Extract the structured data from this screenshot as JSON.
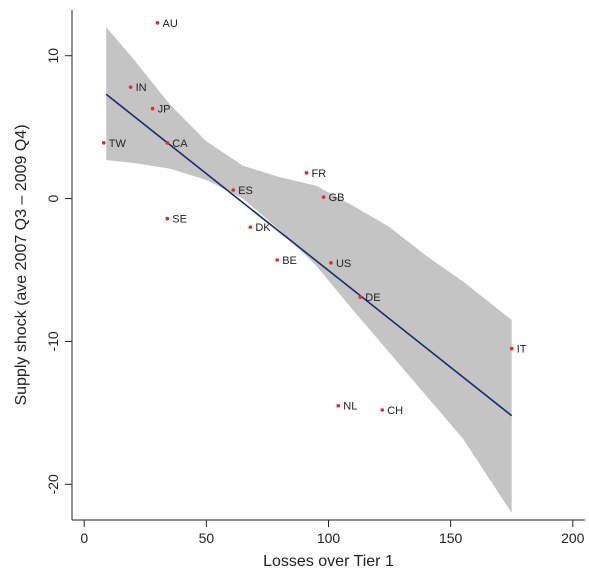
{
  "chart_data": {
    "type": "scatter",
    "title": "",
    "xlabel": "Losses over Tier 1",
    "ylabel": "Supply shock (ave 2007 Q3 – 2009 Q4)",
    "xlim": [
      -5,
      205
    ],
    "ylim": [
      -22.5,
      13.2
    ],
    "xticks": [
      0,
      50,
      100,
      150,
      200
    ],
    "yticks": [
      10,
      0,
      -10,
      -20
    ],
    "points": [
      {
        "label": "AU",
        "x": 30,
        "y": 12.3
      },
      {
        "label": "IN",
        "x": 19,
        "y": 7.8
      },
      {
        "label": "JP",
        "x": 28,
        "y": 6.3
      },
      {
        "label": "TW",
        "x": 8,
        "y": 3.9
      },
      {
        "label": "CA",
        "x": 34,
        "y": 3.9
      },
      {
        "label": "FR",
        "x": 91,
        "y": 1.8
      },
      {
        "label": "ES",
        "x": 61,
        "y": 0.6
      },
      {
        "label": "GB",
        "x": 98,
        "y": 0.1
      },
      {
        "label": "SE",
        "x": 34,
        "y": -1.4
      },
      {
        "label": "DK",
        "x": 68,
        "y": -2.0
      },
      {
        "label": "BE",
        "x": 79,
        "y": -4.3
      },
      {
        "label": "US",
        "x": 101,
        "y": -4.5
      },
      {
        "label": "DE",
        "x": 113,
        "y": -6.9
      },
      {
        "label": "IT",
        "x": 175,
        "y": -10.5
      },
      {
        "label": "NL",
        "x": 104,
        "y": -14.5
      },
      {
        "label": "CH",
        "x": 122,
        "y": -14.8
      }
    ],
    "fit_line": {
      "x": [
        9,
        175
      ],
      "y": [
        7.3,
        -15.2
      ]
    },
    "confidence_band": {
      "x": [
        9,
        20,
        35,
        50,
        65,
        80,
        95,
        110,
        125,
        140,
        155,
        175
      ],
      "upper": [
        12.0,
        9.8,
        6.6,
        4.0,
        2.3,
        1.5,
        0.9,
        -0.5,
        -2.0,
        -4.0,
        -5.8,
        -8.5
      ],
      "lower": [
        2.7,
        2.5,
        2.1,
        1.3,
        0.0,
        -2.2,
        -4.7,
        -7.8,
        -10.8,
        -13.8,
        -16.8,
        -22.0
      ]
    },
    "colors": {
      "band": "#c4c4c4",
      "fit_line": "#1b2a6b",
      "marker": "#e8262c",
      "axis": "#222222"
    },
    "grid": false,
    "legend": "none"
  }
}
